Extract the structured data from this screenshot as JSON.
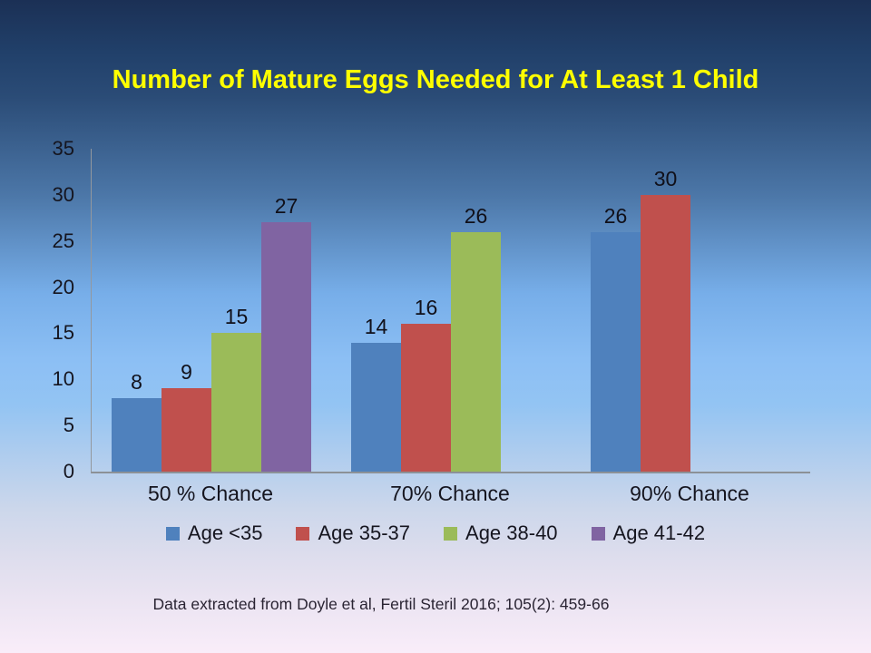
{
  "title": "Number of Mature Eggs Needed for At Least 1 Child",
  "title_color": "#FFFF00",
  "footer": "Data extracted from Doyle et al, Fertil Steril 2016; 105(2): 459-66",
  "colors": {
    "background_top": "#1B3055",
    "background_mid": "#8CBFF4",
    "background_bottom": "#F9EDF9",
    "axis": "#8c9197",
    "text": "#15151f"
  },
  "chart_data": {
    "type": "bar",
    "title": "Number of Mature Eggs Needed for At Least 1 Child",
    "categories": [
      "50 % Chance",
      "70% Chance",
      "90% Chance"
    ],
    "series": [
      {
        "name": "Age <35",
        "color": "#4F81BD",
        "values": [
          8,
          14,
          26
        ]
      },
      {
        "name": "Age 35-37",
        "color": "#C0504D",
        "values": [
          9,
          16,
          30
        ]
      },
      {
        "name": "Age 38-40",
        "color": "#9BBB59",
        "values": [
          15,
          26,
          null
        ]
      },
      {
        "name": "Age 41-42",
        "color": "#8064A2",
        "values": [
          27,
          null,
          null
        ]
      }
    ],
    "xlabel": "",
    "ylabel": "",
    "ylim": [
      0,
      35
    ],
    "yticks": [
      0,
      5,
      10,
      15,
      20,
      25,
      30,
      35
    ],
    "grid": false,
    "bar_value_labels": true,
    "legend_position": "bottom"
  }
}
